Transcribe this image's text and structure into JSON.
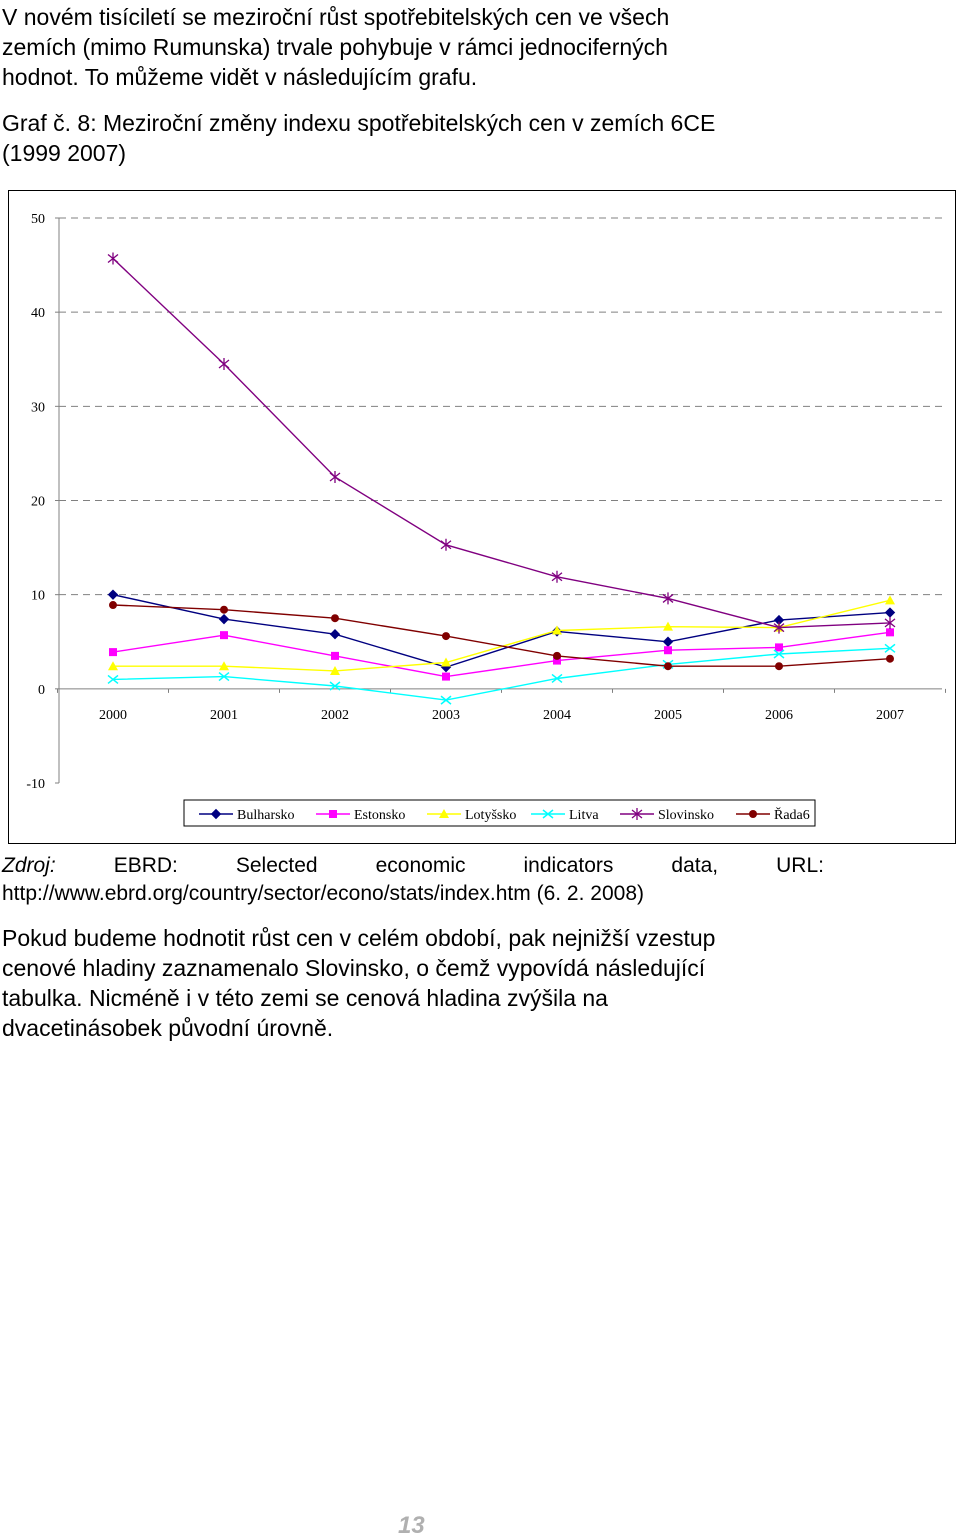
{
  "intro_lines": [
    "V novém tisíciletí se meziroční růst spotřebitelských cen ve všech",
    "zemích (mimo Rumunska) trvale pohybuje v rámci jednociferných",
    "hodnot. To můžeme vidět v následujícím grafu."
  ],
  "caption": {
    "line1": "Graf č. 8: Meziroční změny indexu spotřebitelských cen v zemích 6CE",
    "line2": "(1999 2007)"
  },
  "source": {
    "label": "Zdroj:",
    "words": [
      "EBRD:",
      "Selected",
      "economic",
      "indicators",
      "data,",
      "URL:"
    ],
    "line2": "http://www.ebrd.org/country/sector/econo/stats/index.htm (6. 2. 2008)"
  },
  "closing_lines": [
    "Pokud budeme hodnotit růst cen v celém období, pak nejnižší vzestup",
    "cenové hladiny zaznamenalo Slovinsko, o čemž vypovídá následující",
    "tabulka. Nicméně i v této zemi se cenová hladina zvýšila na",
    "dvacetinásobek původní úrovně."
  ],
  "page_number": "13",
  "chart_data": {
    "type": "line",
    "categories": [
      "2000",
      "2001",
      "2002",
      "2003",
      "2004",
      "2005",
      "2006",
      "2007"
    ],
    "ylim": [
      -10,
      50
    ],
    "yticks": [
      50,
      40,
      30,
      20,
      10,
      0,
      -10
    ],
    "grid": "dashed horizontal",
    "legend_position": "bottom",
    "series": [
      {
        "name": "Bulharsko",
        "color": "#000080",
        "marker": "diamond",
        "values": [
          10.0,
          7.4,
          5.8,
          2.3,
          6.1,
          5.0,
          7.3,
          8.1
        ]
      },
      {
        "name": "Estonsko",
        "color": "#ff00ff",
        "marker": "square",
        "values": [
          3.9,
          5.7,
          3.5,
          1.3,
          3.0,
          4.1,
          4.4,
          6.0
        ]
      },
      {
        "name": "Lotyšsko",
        "color": "#ffff00",
        "marker": "triangle",
        "values": [
          2.4,
          2.4,
          1.9,
          2.8,
          6.2,
          6.6,
          6.5,
          9.4
        ]
      },
      {
        "name": "Litva",
        "color": "#00ffff",
        "marker": "x",
        "values": [
          1.0,
          1.3,
          0.3,
          -1.2,
          1.1,
          2.6,
          3.7,
          4.3
        ]
      },
      {
        "name": "Slovinsko",
        "color": "#800080",
        "marker": "star",
        "values": [
          45.7,
          34.5,
          22.5,
          15.3,
          11.9,
          9.6,
          6.5,
          7.0
        ]
      },
      {
        "name": "Řada6",
        "color": "#800000",
        "marker": "circle",
        "values": [
          8.9,
          8.4,
          7.5,
          5.6,
          3.5,
          2.4,
          2.4,
          3.2
        ]
      }
    ]
  }
}
